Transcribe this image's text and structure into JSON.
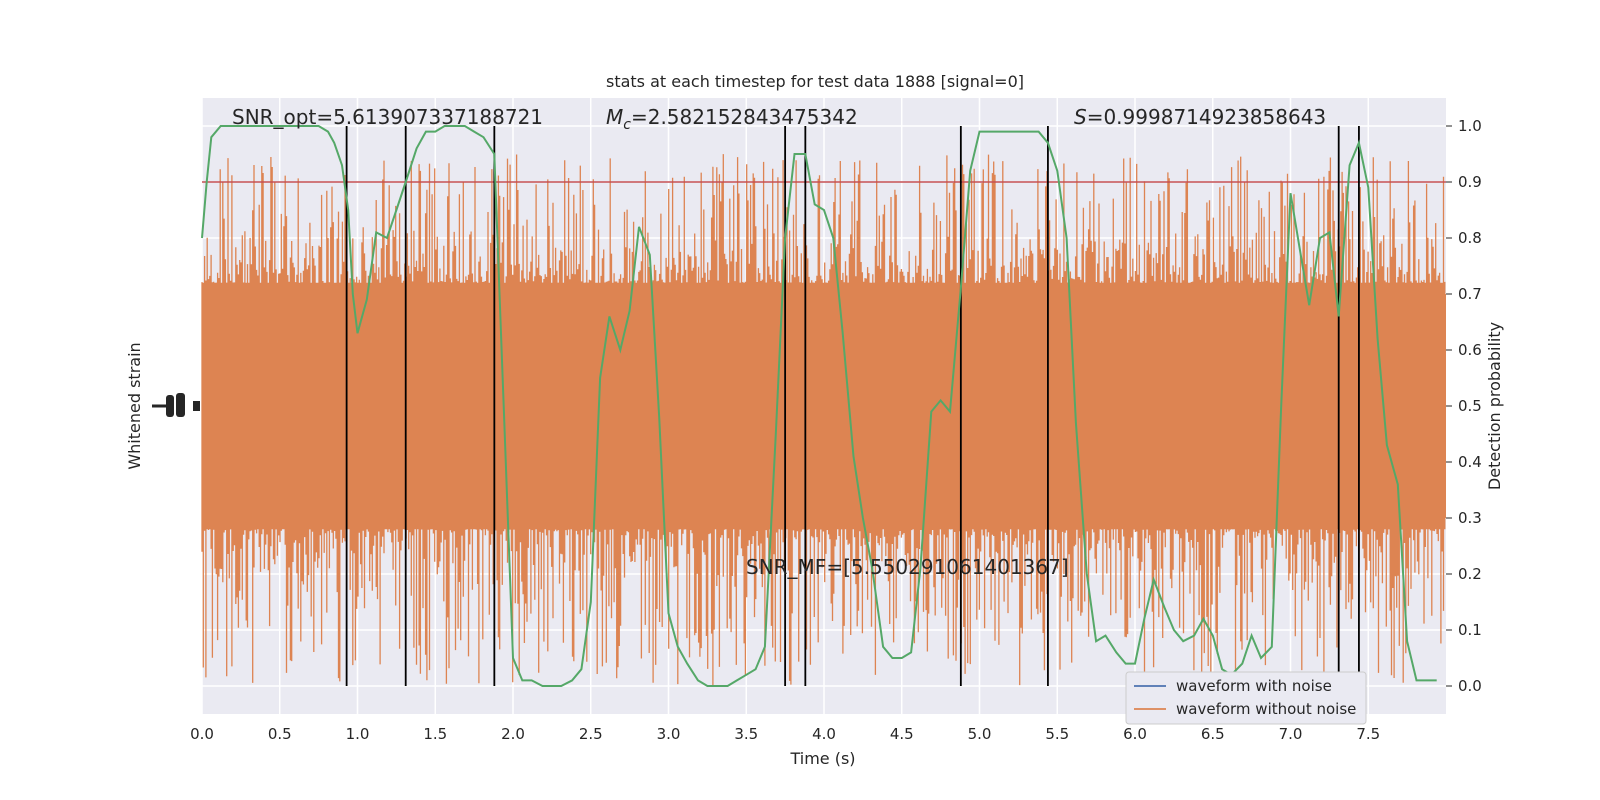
{
  "chart_data": {
    "type": "line",
    "title": "stats at each timestep for test data 1888 [signal=0]",
    "xlabel": "Time (s)",
    "ylabel_left": "Whitened strain",
    "ylabel_right": "Detection probability",
    "xlim": [
      0.0,
      8.0
    ],
    "ylim_right": [
      -0.05,
      1.05
    ],
    "x_ticks": [
      "0.0",
      "0.5",
      "1.0",
      "1.5",
      "2.0",
      "2.5",
      "3.0",
      "3.5",
      "4.0",
      "4.5",
      "5.0",
      "5.5",
      "6.0",
      "6.5",
      "7.0",
      "7.5"
    ],
    "y_right_ticks": [
      "0.0",
      "0.1",
      "0.2",
      "0.3",
      "0.4",
      "0.5",
      "0.6",
      "0.7",
      "0.8",
      "0.9",
      "1.0"
    ],
    "grid": true,
    "legend_position": "lower-right",
    "annotations": {
      "snr_opt": "SNR_opt=5.613907337188721",
      "mc_symbol": "M",
      "mc_subscript": "c",
      "mc_value": "=2.582152843475342",
      "s_symbol": "S",
      "s_value": "=0.9998714923858643",
      "snr_mf": "SNR_MF=[5.550291061401367]"
    },
    "threshold": 0.9,
    "event_lines_x": [
      0.93,
      1.31,
      1.88,
      3.75,
      3.88,
      4.88,
      5.44,
      7.31,
      7.44
    ],
    "series": [
      {
        "name": "waveform with noise",
        "color": "#4c72b0",
        "values": []
      },
      {
        "name": "waveform without noise",
        "color": "#dd8452",
        "noise_band_prob": [
          0.3,
          0.7
        ],
        "extreme_range_prob": [
          0.0,
          0.95
        ]
      },
      {
        "color": "#55a868",
        "x": [
          0.0,
          0.03,
          0.06,
          0.12,
          0.19,
          0.25,
          0.31,
          0.38,
          0.44,
          0.5,
          0.56,
          0.62,
          0.69,
          0.75,
          0.81,
          0.85,
          0.9,
          0.94,
          0.97,
          1.0,
          1.06,
          1.12,
          1.19,
          1.25,
          1.31,
          1.38,
          1.44,
          1.5,
          1.56,
          1.62,
          1.69,
          1.75,
          1.81,
          1.88,
          1.94,
          2.0,
          2.06,
          2.12,
          2.19,
          2.25,
          2.31,
          2.38,
          2.44,
          2.5,
          2.56,
          2.62,
          2.69,
          2.75,
          2.81,
          2.88,
          2.94,
          3.0,
          3.06,
          3.12,
          3.19,
          3.25,
          3.31,
          3.38,
          3.44,
          3.5,
          3.56,
          3.62,
          3.69,
          3.75,
          3.81,
          3.88,
          3.94,
          4.0,
          4.06,
          4.12,
          4.19,
          4.25,
          4.31,
          4.38,
          4.44,
          4.5,
          4.56,
          4.62,
          4.69,
          4.75,
          4.81,
          4.88,
          4.94,
          5.0,
          5.06,
          5.12,
          5.19,
          5.25,
          5.31,
          5.38,
          5.44,
          5.5,
          5.56,
          5.62,
          5.69,
          5.75,
          5.81,
          5.88,
          5.94,
          6.0,
          6.06,
          6.12,
          6.19,
          6.25,
          6.31,
          6.38,
          6.44,
          6.5,
          6.56,
          6.62,
          6.69,
          6.75,
          6.81,
          6.88,
          6.94,
          7.0,
          7.06,
          7.12,
          7.19,
          7.25,
          7.31,
          7.38,
          7.44,
          7.5,
          7.56,
          7.62,
          7.69,
          7.75,
          7.81,
          7.88,
          7.94
        ],
        "y": [
          0.8,
          0.9,
          0.98,
          1.0,
          1.0,
          1.0,
          1.0,
          1.0,
          1.0,
          1.0,
          1.0,
          1.0,
          1.0,
          1.0,
          0.99,
          0.97,
          0.93,
          0.85,
          0.7,
          0.63,
          0.69,
          0.81,
          0.8,
          0.85,
          0.9,
          0.96,
          0.99,
          0.99,
          1.0,
          1.0,
          1.0,
          0.99,
          0.98,
          0.95,
          0.5,
          0.05,
          0.01,
          0.01,
          0.0,
          0.0,
          0.0,
          0.01,
          0.03,
          0.15,
          0.55,
          0.66,
          0.6,
          0.67,
          0.82,
          0.77,
          0.48,
          0.13,
          0.07,
          0.04,
          0.01,
          0.0,
          0.0,
          0.0,
          0.01,
          0.02,
          0.03,
          0.07,
          0.45,
          0.8,
          0.95,
          0.95,
          0.86,
          0.85,
          0.8,
          0.63,
          0.41,
          0.3,
          0.21,
          0.07,
          0.05,
          0.05,
          0.06,
          0.21,
          0.49,
          0.51,
          0.49,
          0.71,
          0.92,
          0.99,
          0.99,
          0.99,
          0.99,
          0.99,
          0.99,
          0.99,
          0.97,
          0.92,
          0.8,
          0.47,
          0.2,
          0.08,
          0.09,
          0.06,
          0.04,
          0.04,
          0.12,
          0.19,
          0.14,
          0.1,
          0.08,
          0.09,
          0.12,
          0.09,
          0.03,
          0.02,
          0.04,
          0.09,
          0.05,
          0.07,
          0.5,
          0.88,
          0.78,
          0.68,
          0.8,
          0.81,
          0.66,
          0.93,
          0.97,
          0.89,
          0.62,
          0.43,
          0.36,
          0.08,
          0.01,
          0.01,
          0.01
        ]
      }
    ]
  }
}
